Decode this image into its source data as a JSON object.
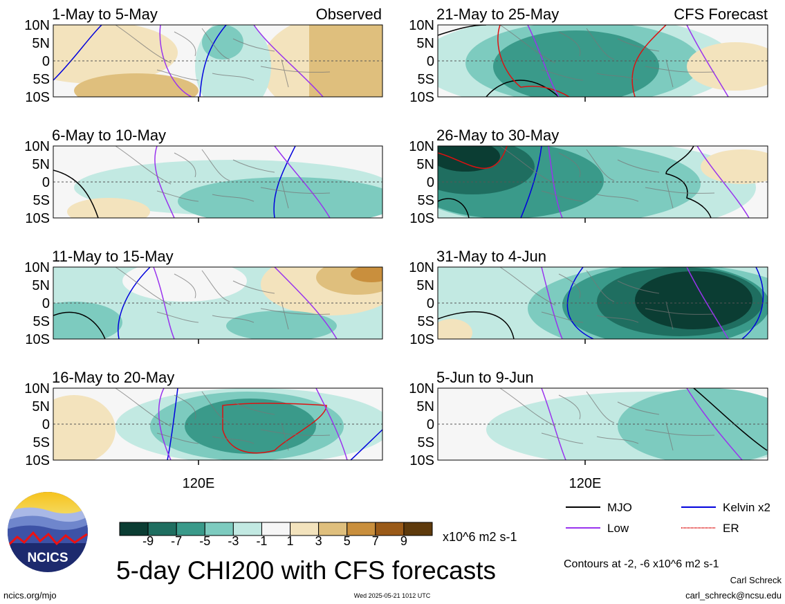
{
  "header": {
    "observed_label": "Observed",
    "forecast_label": "CFS Forecast"
  },
  "lat_ticks": [
    "10N",
    "5N",
    "0",
    "5S",
    "10S"
  ],
  "lon_label": "120E",
  "panels": [
    {
      "id": "p1",
      "title": "1-May to 5-May",
      "kind": "observed"
    },
    {
      "id": "p2",
      "title": "6-May to 10-May",
      "kind": "observed"
    },
    {
      "id": "p3",
      "title": "11-May to 15-May",
      "kind": "observed"
    },
    {
      "id": "p4",
      "title": "16-May to 20-May",
      "kind": "observed"
    },
    {
      "id": "p5",
      "title": "21-May to 25-May",
      "kind": "forecast"
    },
    {
      "id": "p6",
      "title": "26-May to 30-May",
      "kind": "forecast"
    },
    {
      "id": "p7",
      "title": "31-May to 4-Jun",
      "kind": "forecast"
    },
    {
      "id": "p8",
      "title": "5-Jun to 9-Jun",
      "kind": "forecast"
    }
  ],
  "colorbar": {
    "tick_labels": [
      "-9",
      "-7",
      "-5",
      "-3",
      "-1",
      "1",
      "3",
      "5",
      "7",
      "9"
    ],
    "colors": [
      "#0b3d33",
      "#1f6e60",
      "#3a9a8a",
      "#7dcbbf",
      "#c2e9e2",
      "#f6f6f6",
      "#f3e3bd",
      "#dfbf7d",
      "#c98f3d",
      "#9a5a18",
      "#5e3a0c"
    ],
    "units": "x10^6 m2 s-1"
  },
  "legend": {
    "items": [
      {
        "label": "MJO",
        "color": "#000000"
      },
      {
        "label": "Kelvin x2",
        "color": "#0000dd"
      },
      {
        "label": "Low",
        "color": "#9933ee"
      },
      {
        "label": "ER",
        "color": "#dd1111"
      }
    ],
    "contour_note": "Contours at -2, -6 x10^6 m2 s-1"
  },
  "title": "5-day CHI200 with CFS forecasts",
  "logo_text": "NCICS",
  "footer": {
    "url": "ncics.org/mjo",
    "timestamp": "Wed 2025-05-21 1012 UTC",
    "author": "Carl Schreck",
    "email": "carl_schreck@ncsu.edu"
  },
  "chart_data": {
    "type": "heatmap",
    "title": "5-day CHI200 with CFS forecasts",
    "variable": "CHI200",
    "units": "x10^6 m2 s-1",
    "color_levels": [
      -9,
      -7,
      -5,
      -3,
      -1,
      1,
      3,
      5,
      7,
      9
    ],
    "lat_range": [
      -10,
      10
    ],
    "lon_tick": "120E",
    "contour_levels": [
      -2,
      -6
    ],
    "panels": [
      "1-May to 5-May",
      "6-May to 10-May",
      "11-May to 15-May",
      "16-May to 20-May",
      "21-May to 25-May",
      "26-May to 30-May",
      "31-May to 4-Jun",
      "5-Jun to 9-Jun"
    ],
    "series": [
      {
        "name": "MJO",
        "color": "#000000"
      },
      {
        "name": "Kelvin x2",
        "color": "#0000dd"
      },
      {
        "name": "Low",
        "color": "#9933ee"
      },
      {
        "name": "ER",
        "color": "#dd1111"
      }
    ]
  }
}
